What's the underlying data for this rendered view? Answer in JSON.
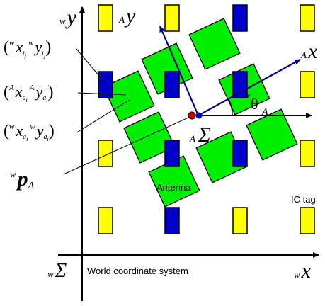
{
  "diagram": {
    "colors": {
      "tag": "#ffff00",
      "tag_active": "#0000cc",
      "antenna": "#00ee00",
      "axis_world": "#000000",
      "axis_antenna": "#000080",
      "origin_red": "#cc0000",
      "origin_blue": "#0000cc"
    },
    "labels": {
      "world_y": {
        "pre": "w",
        "main": "y"
      },
      "world_x": {
        "pre": "w",
        "main": "x"
      },
      "world_sigma": {
        "pre": "w",
        "main": "Σ"
      },
      "antenna_y": {
        "pre": "A",
        "main": "y"
      },
      "antenna_x": {
        "pre": "A",
        "main": "x"
      },
      "antenna_sigma": {
        "pre": "A",
        "main": "Σ"
      },
      "antenna_x_sub": "A",
      "theta": "θ",
      "theta_pre": "w",
      "p_vector": {
        "pre": "w",
        "main": "p",
        "sub": "A"
      },
      "world_caption": "World coordinate system",
      "antenna_caption": "Antenna",
      "ic_tag_caption": "IC tag",
      "tag_position": {
        "open": "(",
        "pre1": "w",
        "x": "x",
        "x_sub": "t",
        "x_sub2": "j",
        "pre2": "w",
        "y": "y",
        "y_sub": "t",
        "y_sub2": "j",
        "close": ")"
      },
      "antenna_local": {
        "open": "(",
        "pre1": "A",
        "x": "x",
        "x_sub": "a",
        "x_sub2": "i",
        "pre2": "A",
        "y": "y",
        "y_sub": "a",
        "y_sub2": "i",
        "close": ")"
      },
      "antenna_world": {
        "open": "(",
        "pre1": "w",
        "x": "x",
        "x_sub": "a",
        "x_sub2": "i",
        "pre2": "w",
        "y": "y",
        "y_sub": "a",
        "y_sub2": "i",
        "close": ")"
      }
    }
  }
}
